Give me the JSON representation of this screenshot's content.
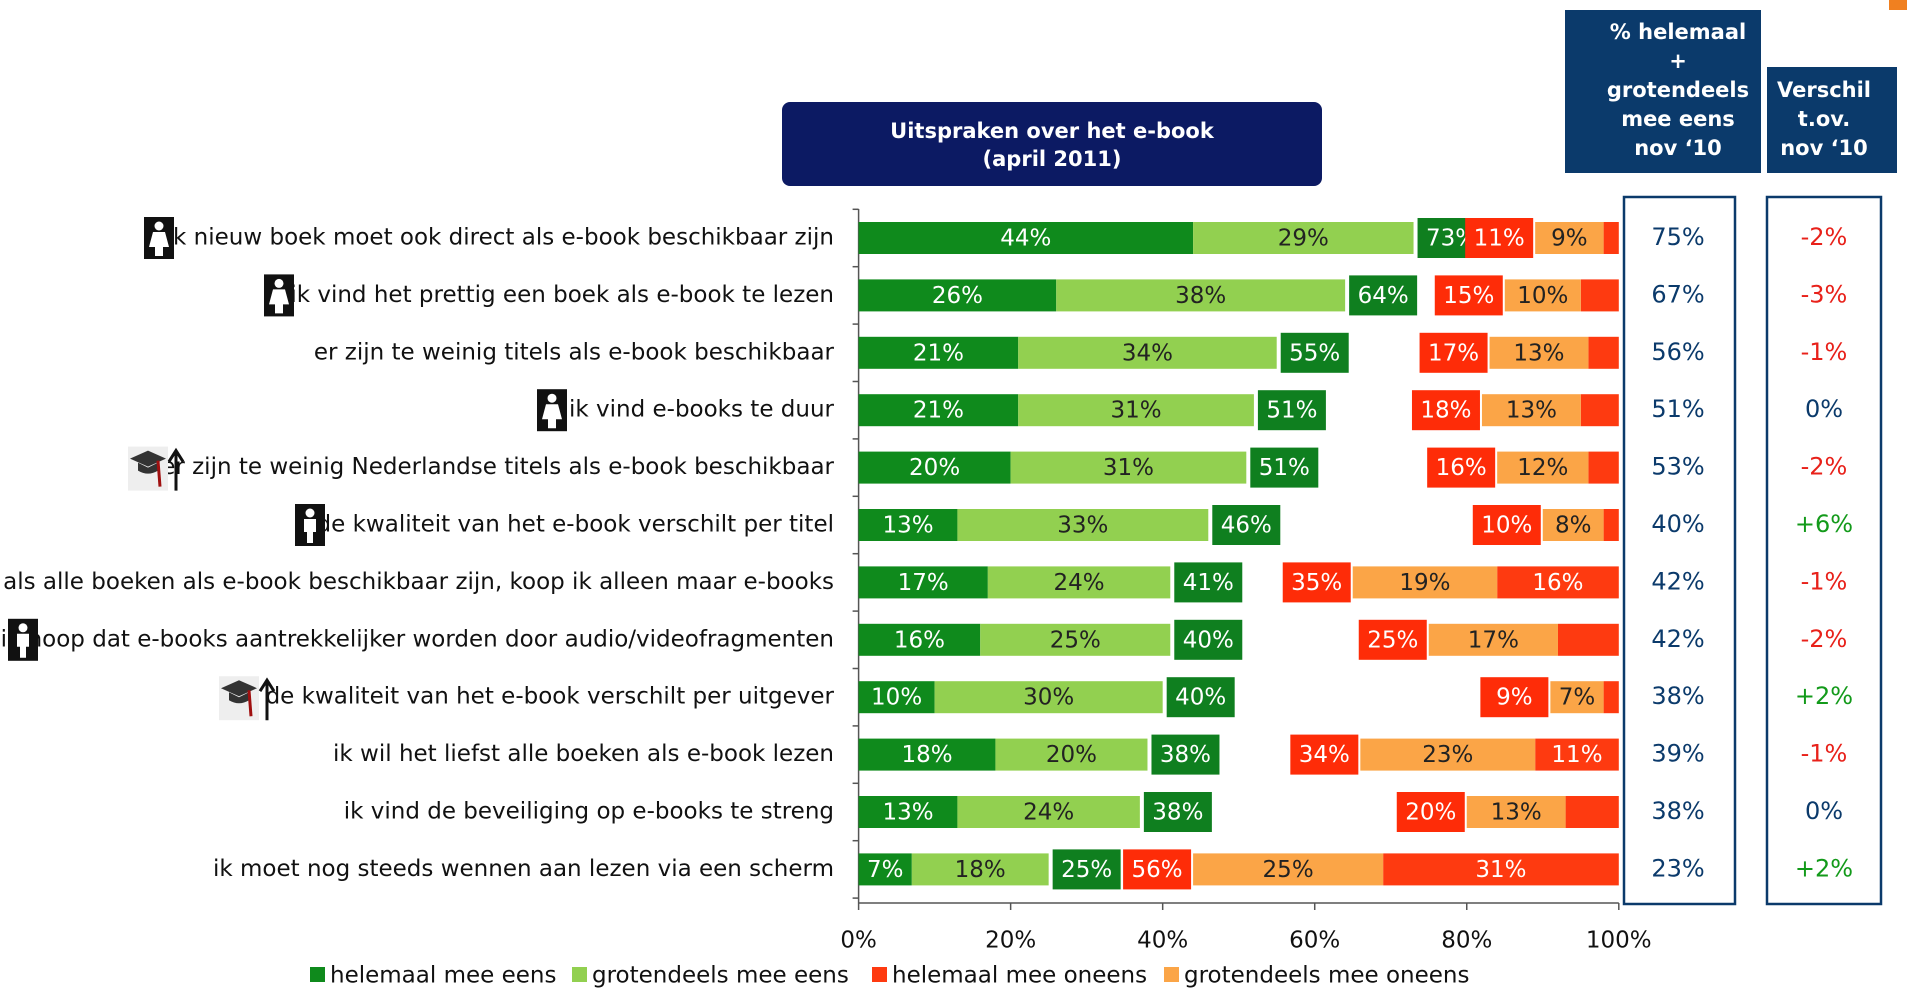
{
  "chart_data": {
    "type": "stacked_bar_diverging",
    "title": "Uitspraken over het e-book",
    "subtitle": "(april 2011)",
    "categories": [
      "elk nieuw boek moet ook direct als e-book beschikbaar zijn",
      "ik vind het prettig een boek als e-book te lezen",
      "er zijn te weinig titels als e-book beschikbaar",
      "ik vind e-books te duur",
      "er zijn te weinig Nederlandse titels als e-book beschikbaar",
      "de kwaliteit van het e-book verschilt per titel",
      "als alle boeken als e-book beschikbaar zijn, koop ik alleen maar e-books",
      "ik hoop dat e-books aantrekkelijker worden door audio/videofragmenten",
      "de kwaliteit van het e-book verschilt per uitgever",
      "ik wil het liefst alle boeken als e-book lezen",
      "ik vind de beveiliging op e-books te streng",
      "ik moet nog steeds wennen aan lezen via een scherm"
    ],
    "series": [
      {
        "name": "helemaal mee eens",
        "color": "#0f8a1c",
        "side": "agree",
        "values": [
          44,
          26,
          21,
          21,
          20,
          13,
          17,
          16,
          10,
          18,
          13,
          7
        ],
        "value_labels": [
          "44%",
          "26%",
          "21%",
          "21%",
          "20%",
          "13%",
          "17%",
          "16%",
          "10%",
          "18%",
          "13%",
          "7%"
        ]
      },
      {
        "name": "grotendeels mee eens",
        "color": "#92d050",
        "side": "agree",
        "values": [
          29,
          38,
          34,
          31,
          31,
          33,
          24,
          25,
          30,
          20,
          24,
          18
        ],
        "value_labels": [
          "29%",
          "38%",
          "34%",
          "31%",
          "31%",
          "33%",
          "24%",
          "25%",
          "30%",
          "20%",
          "24%",
          "18%"
        ]
      },
      {
        "name": "helemaal mee oneens",
        "color": "#fe3a10",
        "side": "disagree",
        "values": [
          2,
          5,
          4,
          5,
          4,
          2,
          16,
          8,
          2,
          11,
          7,
          31
        ],
        "value_labels": [
          null,
          null,
          null,
          null,
          null,
          null,
          "16%",
          null,
          null,
          "11%",
          null,
          "31%"
        ]
      },
      {
        "name": "grotendeels mee oneens",
        "color": "#fba547",
        "side": "disagree",
        "values": [
          9,
          10,
          13,
          13,
          12,
          8,
          19,
          17,
          7,
          23,
          13,
          25
        ],
        "value_labels": [
          "9%",
          "10%",
          "13%",
          "13%",
          "12%",
          "8%",
          "19%",
          "17%",
          "7%",
          "23%",
          "13%",
          "25%"
        ]
      }
    ],
    "agree_totals": {
      "color": "#0f7f1f",
      "values": [
        73,
        64,
        55,
        51,
        51,
        46,
        41,
        40,
        40,
        38,
        38,
        25
      ],
      "value_labels": [
        "73%",
        "64%",
        "55%",
        "51%",
        "51%",
        "46%",
        "41%",
        "40%",
        "40%",
        "38%",
        "38%",
        "25%"
      ]
    },
    "disagree_totals": {
      "color": "#fe2c08",
      "values": [
        11,
        15,
        17,
        18,
        16,
        10,
        35,
        25,
        9,
        34,
        20,
        56
      ],
      "value_labels": [
        "11%",
        "15%",
        "17%",
        "18%",
        "16%",
        "10%",
        "35%",
        "25%",
        "9%",
        "34%",
        "20%",
        "56%"
      ]
    },
    "xlim": [
      0,
      100
    ],
    "xticks": [
      {
        "value": 0,
        "label": "0%"
      },
      {
        "value": 20,
        "label": "20%"
      },
      {
        "value": 40,
        "label": "40%"
      },
      {
        "value": 60,
        "label": "60%"
      },
      {
        "value": 80,
        "label": "80%"
      },
      {
        "value": 100,
        "label": "100%"
      }
    ],
    "legend": "bottom",
    "columns": [
      {
        "header": [
          "% helemaal",
          "+",
          "grotendeels",
          "mee eens",
          "nov ‘10"
        ],
        "values": [
          "75%",
          "67%",
          "56%",
          "51%",
          "53%",
          "40%",
          "42%",
          "42%",
          "38%",
          "39%",
          "38%",
          "23%"
        ]
      },
      {
        "header": [
          "Verschil",
          "t.ov.",
          "nov ‘10"
        ],
        "values": [
          "-2%",
          "-3%",
          "-1%",
          "0%",
          "-2%",
          "+6%",
          "-1%",
          "-2%",
          "+2%",
          "-1%",
          "0%",
          "+2%"
        ]
      }
    ]
  }
}
